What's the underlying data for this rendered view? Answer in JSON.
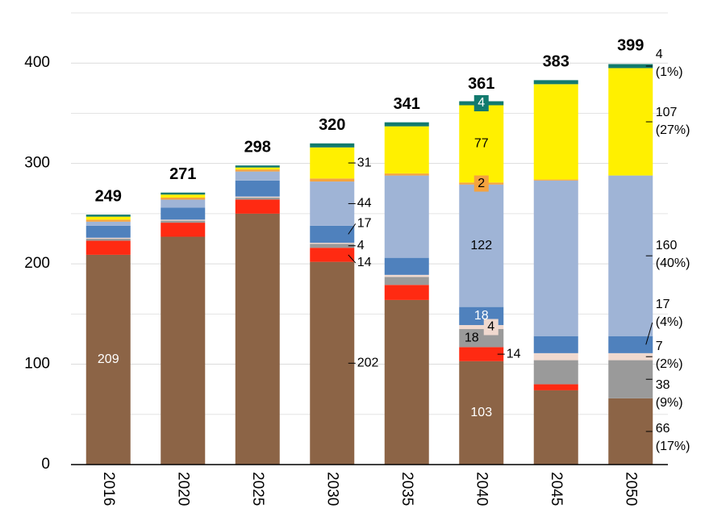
{
  "chart_data": {
    "type": "stacked_bar",
    "categories": [
      "2016",
      "2020",
      "2025",
      "2030",
      "2035",
      "2040",
      "2045",
      "2050"
    ],
    "totals": [
      249,
      271,
      298,
      320,
      341,
      361,
      383,
      399
    ],
    "ylim": [
      0,
      450
    ],
    "yticks": [
      0,
      100,
      200,
      300,
      400
    ],
    "grid": true,
    "minor_grid": true,
    "series": [
      {
        "color": "#8c6446",
        "values": [
          209,
          227,
          250,
          202,
          164,
          103,
          74,
          66
        ],
        "share_labels": [
          null,
          null,
          null,
          null,
          null,
          null,
          null,
          "(17%)"
        ]
      },
      {
        "color": "#ff2a12",
        "values": [
          14,
          14,
          14,
          14,
          15,
          14,
          6,
          0
        ]
      },
      {
        "color": "#9a9a9a",
        "values": [
          2,
          2,
          2,
          4,
          8,
          18,
          24,
          38
        ],
        "share_labels": [
          null,
          null,
          null,
          null,
          null,
          null,
          null,
          "(9%)"
        ]
      },
      {
        "color": "#f0d9cf",
        "values": [
          1,
          1,
          1,
          1,
          2,
          4,
          7,
          7
        ],
        "share_labels": [
          null,
          null,
          null,
          null,
          null,
          null,
          null,
          "(2%)"
        ]
      },
      {
        "color": "#4f81bd",
        "values": [
          12,
          12,
          16,
          17,
          17,
          18,
          17,
          17
        ],
        "share_labels": [
          null,
          null,
          null,
          null,
          null,
          null,
          null,
          "(4%)"
        ]
      },
      {
        "color": "#9fb4d6",
        "values": [
          4,
          8,
          9,
          44,
          82,
          122,
          155,
          160
        ],
        "share_labels": [
          null,
          null,
          null,
          null,
          null,
          null,
          null,
          "(40%)"
        ]
      },
      {
        "color": "#f4a340",
        "values": [
          2,
          2,
          2,
          3,
          2,
          2,
          1,
          0
        ]
      },
      {
        "color": "#fff000",
        "values": [
          3,
          3,
          2,
          31,
          47,
          77,
          95,
          107
        ],
        "share_labels": [
          null,
          null,
          null,
          null,
          null,
          null,
          null,
          "(27%)"
        ]
      },
      {
        "color": "#127a6e",
        "values": [
          2,
          2,
          2,
          4,
          4,
          4,
          4,
          4
        ],
        "share_labels": [
          null,
          null,
          null,
          null,
          null,
          null,
          null,
          "(1%)"
        ]
      }
    ]
  }
}
